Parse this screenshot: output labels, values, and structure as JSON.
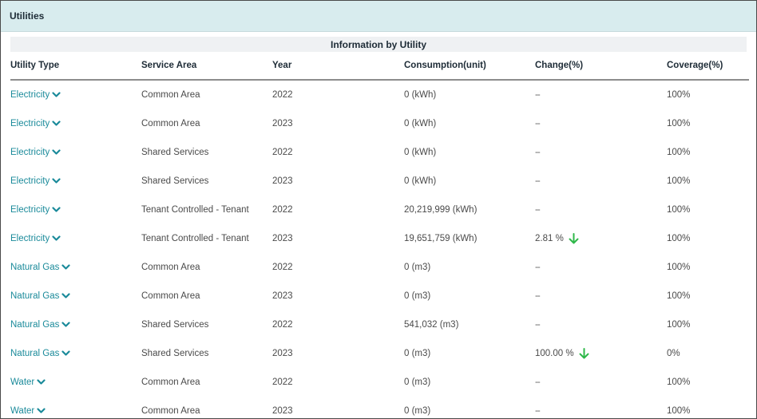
{
  "panel": {
    "title": "Utilities"
  },
  "section": {
    "title": "Information by Utility"
  },
  "columns": [
    "Utility Type",
    "Service Area",
    "Year",
    "Consumption(unit)",
    "Change(%)",
    "Coverage(%)"
  ],
  "rows": [
    {
      "type": "Electricity",
      "area": "Common Area",
      "year": "2022",
      "consumption": "0 (kWh)",
      "change": "--",
      "decrease": false,
      "coverage": "100%"
    },
    {
      "type": "Electricity",
      "area": "Common Area",
      "year": "2023",
      "consumption": "0 (kWh)",
      "change": "--",
      "decrease": false,
      "coverage": "100%"
    },
    {
      "type": "Electricity",
      "area": "Shared Services",
      "year": "2022",
      "consumption": "0 (kWh)",
      "change": "--",
      "decrease": false,
      "coverage": "100%"
    },
    {
      "type": "Electricity",
      "area": "Shared Services",
      "year": "2023",
      "consumption": "0 (kWh)",
      "change": "--",
      "decrease": false,
      "coverage": "100%"
    },
    {
      "type": "Electricity",
      "area": "Tenant Controlled - Tenant",
      "year": "2022",
      "consumption": "20,219,999 (kWh)",
      "change": "--",
      "decrease": false,
      "coverage": "100%"
    },
    {
      "type": "Electricity",
      "area": "Tenant Controlled - Tenant",
      "year": "2023",
      "consumption": "19,651,759 (kWh)",
      "change": "2.81 %",
      "decrease": true,
      "coverage": "100%"
    },
    {
      "type": "Natural Gas",
      "area": "Common Area",
      "year": "2022",
      "consumption": "0 (m3)",
      "change": "--",
      "decrease": false,
      "coverage": "100%"
    },
    {
      "type": "Natural Gas",
      "area": "Common Area",
      "year": "2023",
      "consumption": "0 (m3)",
      "change": "--",
      "decrease": false,
      "coverage": "100%"
    },
    {
      "type": "Natural Gas",
      "area": "Shared Services",
      "year": "2022",
      "consumption": "541,032 (m3)",
      "change": "--",
      "decrease": false,
      "coverage": "100%"
    },
    {
      "type": "Natural Gas",
      "area": "Shared Services",
      "year": "2023",
      "consumption": "0 (m3)",
      "change": "100.00 %",
      "decrease": true,
      "coverage": "0%"
    },
    {
      "type": "Water",
      "area": "Common Area",
      "year": "2022",
      "consumption": "0 (m3)",
      "change": "--",
      "decrease": false,
      "coverage": "100%"
    },
    {
      "type": "Water",
      "area": "Common Area",
      "year": "2023",
      "consumption": "0 (m3)",
      "change": "--",
      "decrease": false,
      "coverage": "100%"
    }
  ],
  "colors": {
    "link": "#1a8a9a",
    "header_bg": "#d8ecee",
    "decrease_arrow": "#2fb84a"
  },
  "icons": {
    "expand": "chevron-down-icon",
    "decrease": "arrow-down-icon"
  }
}
